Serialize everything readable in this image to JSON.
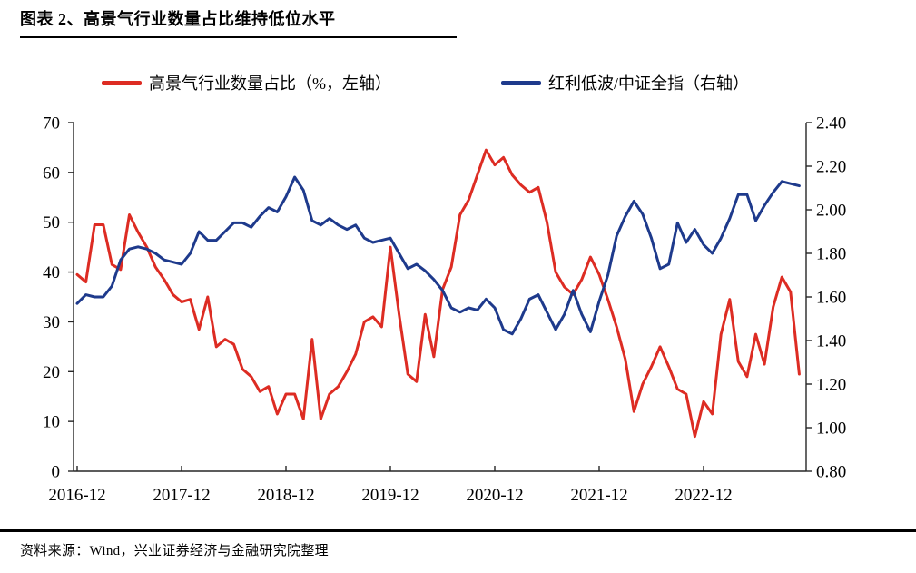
{
  "header": {
    "title": "图表 2、高景气行业数量占比维持低位水平"
  },
  "legend": {
    "items": [
      {
        "label": "高景气行业数量占比（%，左轴）",
        "color": "#dd2c23"
      },
      {
        "label": "红利低波/中证全指（右轴）",
        "color": "#1e3a8c"
      }
    ]
  },
  "footer": {
    "source": "资料来源：Wind，兴业证券经济与金融研究院整理"
  },
  "chart_data": {
    "type": "line",
    "title": "高景气行业数量占比维持低位水平",
    "x_start": "2016-12",
    "x_freq": "monthly",
    "x_tick_labels": [
      "2016-12",
      "2017-12",
      "2018-12",
      "2019-12",
      "2020-12",
      "2021-12",
      "2022-12"
    ],
    "left_axis": {
      "label": "高景气行业数量占比（%）",
      "range": [
        0,
        70
      ],
      "tick_labels": [
        "70",
        "60",
        "50",
        "40",
        "30",
        "20",
        "10",
        "0"
      ]
    },
    "right_axis": {
      "label": "红利低波/中证全指",
      "range": [
        0.8,
        2.4
      ],
      "tick_labels": [
        "2.40",
        "2.20",
        "2.00",
        "1.80",
        "1.60",
        "1.40",
        "1.20",
        "1.00",
        "0.80"
      ]
    },
    "grid": false,
    "legend_position": "top",
    "axis_color": "#262626",
    "series": [
      {
        "name": "高景气行业数量占比（%，左轴）",
        "axis": "left",
        "color": "#dd2c23",
        "values": [
          39.5,
          38,
          49.5,
          49.5,
          41.5,
          40.5,
          51.5,
          48,
          45,
          41,
          38.5,
          35.5,
          34,
          34.5,
          28.5,
          35,
          25,
          26.5,
          25.5,
          20.5,
          19,
          16,
          17,
          11.5,
          15.5,
          15.5,
          10.5,
          26.5,
          10.5,
          15.5,
          17,
          20,
          23.5,
          30,
          31,
          29,
          45,
          31.5,
          19.5,
          18,
          31.5,
          23,
          36.5,
          41,
          51.5,
          54.5,
          59.5,
          64.5,
          61.5,
          63,
          59.5,
          57.5,
          56,
          57,
          50,
          40,
          37,
          35.5,
          38.5,
          43,
          39.5,
          34.5,
          29,
          22.5,
          12,
          17.5,
          21,
          25,
          21,
          16.5,
          15.5,
          7,
          14,
          11.5,
          27.5,
          34.5,
          22,
          19,
          27.5,
          21.5,
          33,
          39,
          36,
          19.5
        ]
      },
      {
        "name": "红利低波/中证全指（右轴）",
        "axis": "right",
        "color": "#1e3a8c",
        "values": [
          1.57,
          1.61,
          1.6,
          1.6,
          1.65,
          1.77,
          1.82,
          1.83,
          1.82,
          1.8,
          1.77,
          1.76,
          1.75,
          1.8,
          1.9,
          1.86,
          1.86,
          1.9,
          1.94,
          1.94,
          1.92,
          1.97,
          2.01,
          1.99,
          2.06,
          2.15,
          2.09,
          1.95,
          1.93,
          1.96,
          1.93,
          1.91,
          1.93,
          1.87,
          1.85,
          1.86,
          1.87,
          1.8,
          1.73,
          1.75,
          1.72,
          1.68,
          1.63,
          1.55,
          1.53,
          1.55,
          1.54,
          1.59,
          1.55,
          1.45,
          1.43,
          1.5,
          1.59,
          1.61,
          1.53,
          1.45,
          1.52,
          1.63,
          1.52,
          1.44,
          1.58,
          1.7,
          1.88,
          1.97,
          2.04,
          1.98,
          1.87,
          1.73,
          1.75,
          1.94,
          1.85,
          1.91,
          1.84,
          1.8,
          1.87,
          1.96,
          2.07,
          2.07,
          1.95,
          2.02,
          2.08,
          2.13,
          2.12,
          2.11
        ]
      }
    ]
  }
}
